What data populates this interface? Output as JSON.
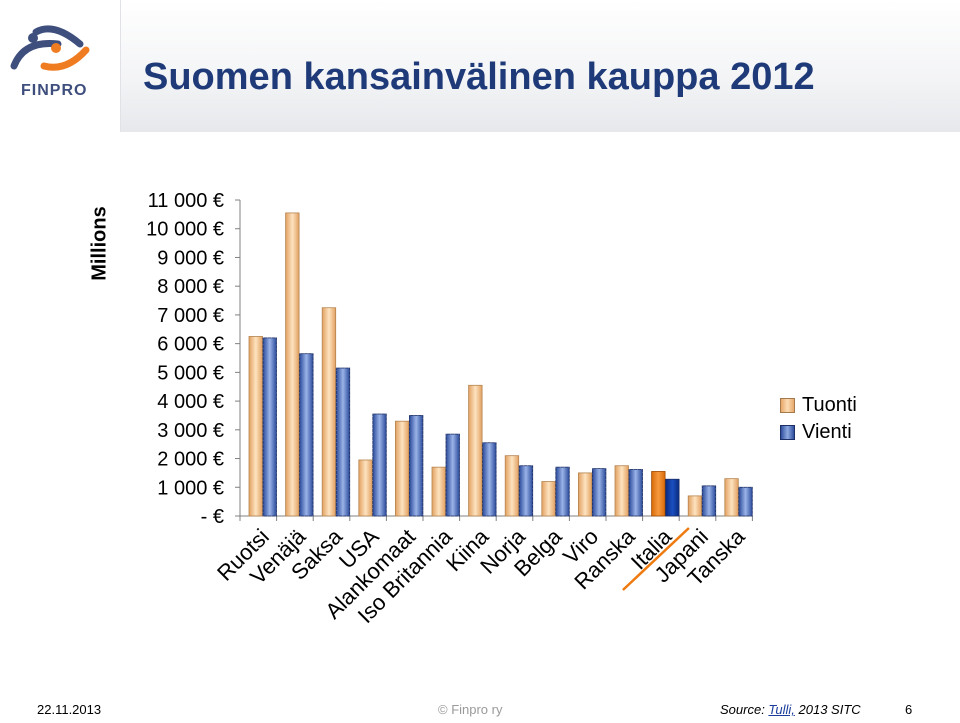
{
  "slide": {
    "title": "Suomen kansainvälinen kauppa 2012",
    "logo_text": "FINPRO",
    "footer_date": "22.11.2013",
    "footer_copyright": "© Finpro ry",
    "source_prefix": "Source: ",
    "source_link": "Tulli,",
    "source_suffix": " 2013 SITC",
    "page_number": "6"
  },
  "colors": {
    "tuonti": "#f4c48e",
    "vienti": "#4a6fc4",
    "highlight_tuonti": "#ee7a10",
    "highlight_vienti": "#0b2f8f",
    "title": "#1f3a78"
  },
  "chart_data": {
    "type": "bar",
    "ylabel": "Millions",
    "ylim": [
      0,
      11000
    ],
    "y_ticks": [
      "11 000 €",
      "10 000 €",
      "9 000 €",
      "8 000 €",
      "7 000 €",
      "6 000 €",
      "5 000 €",
      "4 000 €",
      "3 000 €",
      "2 000 €",
      "1 000 €",
      "- €"
    ],
    "categories": [
      "Ruotsi",
      "Venäjä",
      "Saksa",
      "USA",
      "Alankomaat",
      "Iso Britannia",
      "Kiina",
      "Norja",
      "Belga",
      "Viro",
      "Ranska",
      "Italia",
      "Japani",
      "Tanska"
    ],
    "series": [
      {
        "name": "Tuonti",
        "values": [
          6250,
          10550,
          7250,
          1950,
          3300,
          1700,
          4550,
          2100,
          1200,
          1500,
          1750,
          1550,
          700,
          1300
        ]
      },
      {
        "name": "Vienti",
        "values": [
          6200,
          5650,
          5150,
          3550,
          3500,
          2850,
          2550,
          1750,
          1700,
          1650,
          1620,
          1280,
          1050,
          1000
        ]
      }
    ],
    "highlighted_category": "Italia",
    "legend_position": "right",
    "grid": false
  }
}
